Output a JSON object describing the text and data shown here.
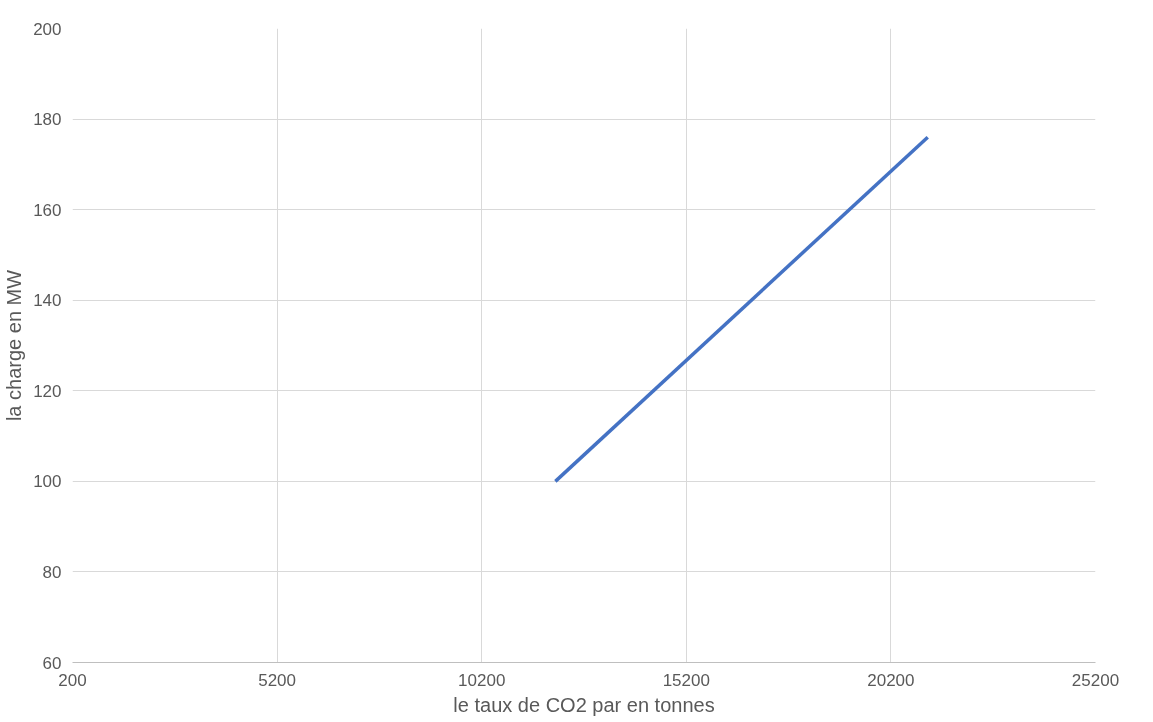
{
  "chart_data": {
    "type": "line",
    "xlabel": "le taux de CO2 par en tonnes",
    "ylabel": "la charge en MW",
    "x": [
      12000,
      21100
    ],
    "series": [
      {
        "color": "#4472c4",
        "values": [
          100,
          176
        ]
      }
    ],
    "xlim": [
      200,
      25200
    ],
    "xticks": [
      200,
      5200,
      10200,
      15200,
      20200,
      25200
    ],
    "ylim": [
      60,
      200
    ],
    "yticks": [
      60,
      80,
      100,
      120,
      140,
      160,
      180,
      200
    ],
    "grid": true,
    "marker": "none",
    "line_style": "solid"
  }
}
